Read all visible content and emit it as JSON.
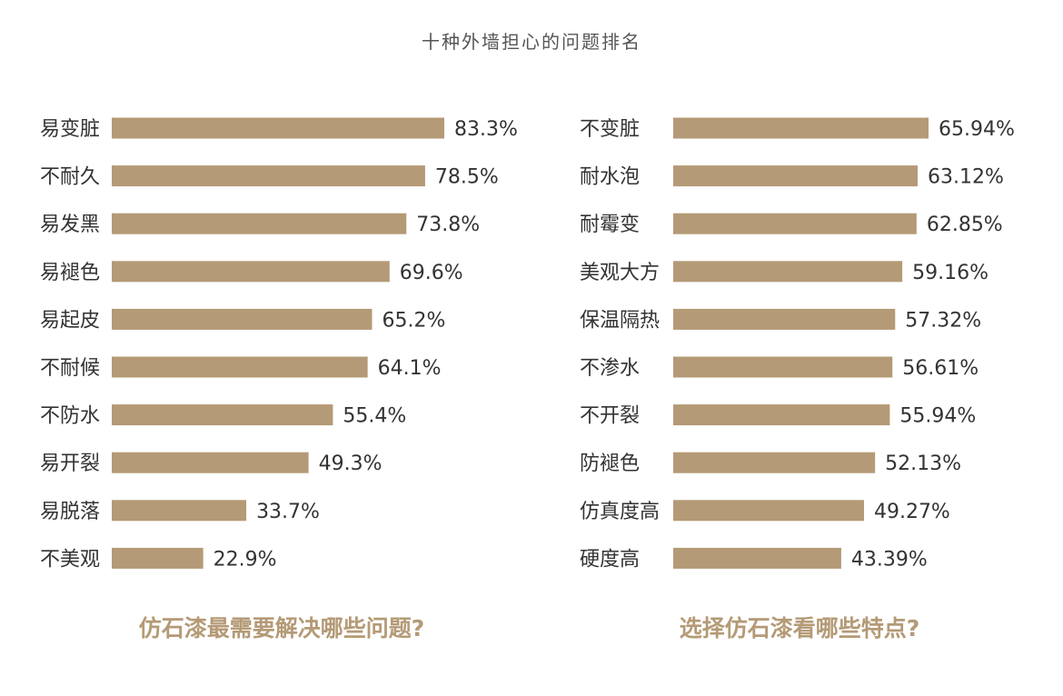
{
  "title": "十种外墙担心的问题排名",
  "colors": {
    "bar": "#b49a76",
    "text": "#333333"
  },
  "chart_data": [
    {
      "type": "bar",
      "orientation": "horizontal",
      "caption": "仿石漆最需要解决哪些问题?",
      "xlim": [
        0,
        83.3
      ],
      "categories": [
        "易变脏",
        "不耐久",
        "易发黑",
        "易褪色",
        "易起皮",
        "不耐候",
        "不防水",
        "易开裂",
        "易脱落",
        "不美观"
      ],
      "values": [
        83.3,
        78.5,
        73.8,
        69.6,
        65.2,
        64.1,
        55.4,
        49.3,
        33.7,
        22.9
      ],
      "labels": [
        "83.3%",
        "78.5%",
        "73.8%",
        "69.6%",
        "65.2%",
        "64.1%",
        "55.4%",
        "49.3%",
        "33.7%",
        "22.9%"
      ]
    },
    {
      "type": "bar",
      "orientation": "horizontal",
      "caption": "选择仿石漆看哪些特点?",
      "xlim": [
        0,
        65.94
      ],
      "categories": [
        "不变脏",
        "耐水泡",
        "耐霉变",
        "美观大方",
        "保温隔热",
        "不渗水",
        "不开裂",
        "防褪色",
        "仿真度高",
        "硬度高"
      ],
      "values": [
        65.94,
        63.12,
        62.85,
        59.16,
        57.32,
        56.61,
        55.94,
        52.13,
        49.27,
        43.39
      ],
      "labels": [
        "65.94%",
        "63.12%",
        "62.85%",
        "59.16%",
        "57.32%",
        "56.61%",
        "55.94%",
        "52.13%",
        "49.27%",
        "43.39%"
      ]
    }
  ]
}
